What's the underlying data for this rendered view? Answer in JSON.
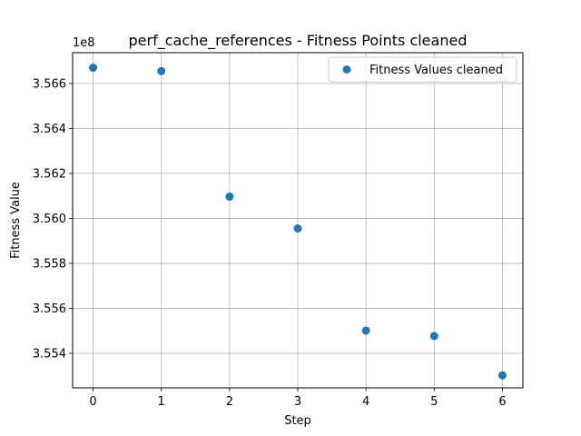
{
  "chart_data": {
    "type": "scatter",
    "title": "perf_cache_references - Fitness Points cleaned",
    "xlabel": "Step",
    "ylabel": "Fitness Value",
    "y_offset_label": "1e8",
    "xlim": [
      -0.3,
      6.3
    ],
    "ylim": [
      355.2464,
      356.7368
    ],
    "x_ticks": [
      0,
      1,
      2,
      3,
      4,
      5,
      6
    ],
    "x_tick_labels": [
      "0",
      "1",
      "2",
      "3",
      "4",
      "5",
      "6"
    ],
    "y_ticks": [
      355.4,
      355.6,
      355.8,
      356.0,
      356.2,
      356.4,
      356.6
    ],
    "y_tick_labels": [
      "3.554",
      "3.556",
      "3.558",
      "3.560",
      "3.562",
      "3.564",
      "3.566"
    ],
    "grid": true,
    "legend_position": "top-right",
    "series": [
      {
        "name": "Fitness Values cleaned",
        "color": "#1f77b4",
        "x": [
          0,
          1,
          2,
          3,
          4,
          5,
          6
        ],
        "y": [
          356.67,
          356.655,
          356.097,
          355.955,
          355.501,
          355.477,
          355.302
        ]
      }
    ]
  }
}
